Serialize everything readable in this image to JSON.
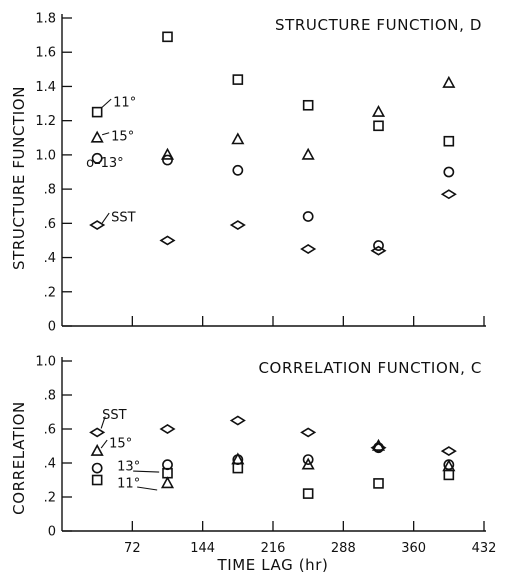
{
  "figure": {
    "xlabel": "TIME LAG (hr)"
  },
  "chart_data": [
    {
      "id": "structure",
      "type": "scatter",
      "title": "STRUCTURE FUNCTION, D",
      "ylabel": "STRUCTURE FUNCTION",
      "xlim": [
        0,
        432
      ],
      "ylim": [
        0,
        1.8
      ],
      "x_ticks": [
        72,
        144,
        216,
        288,
        360,
        432
      ],
      "x_tick_labels_shown": false,
      "y_ticks": [
        0,
        0.2,
        0.4,
        0.6,
        0.8,
        1.0,
        1.2,
        1.4,
        1.6,
        1.8
      ],
      "y_tick_labels": [
        "0",
        ".2",
        ".4",
        ".6",
        ".8",
        "1.0",
        "1.2",
        "1.4",
        "1.6",
        "1.8"
      ],
      "grid": false,
      "x": [
        36,
        108,
        180,
        252,
        324,
        396
      ],
      "series": [
        {
          "name": "11°",
          "marker": "square",
          "values": [
            1.25,
            1.69,
            1.44,
            1.29,
            1.17,
            1.08
          ]
        },
        {
          "name": "15°",
          "marker": "triangle",
          "values": [
            1.1,
            1.0,
            1.09,
            1.0,
            1.25,
            1.42
          ]
        },
        {
          "name": "13°",
          "marker": "circle",
          "values": [
            0.98,
            0.97,
            0.91,
            0.64,
            0.47,
            0.9
          ]
        },
        {
          "name": "SST",
          "marker": "diamond",
          "values": [
            0.59,
            0.5,
            0.59,
            0.45,
            0.44,
            0.77
          ]
        }
      ],
      "annotations": [
        {
          "series": "11°",
          "text": "11°"
        },
        {
          "series": "15°",
          "text": "15°"
        },
        {
          "series": "13°",
          "text": "o–13°"
        },
        {
          "series": "SST",
          "text": "SST"
        }
      ]
    },
    {
      "id": "correlation",
      "type": "scatter",
      "title": "CORRELATION FUNCTION, C",
      "ylabel": "CORRELATION",
      "xlim": [
        0,
        432
      ],
      "ylim": [
        0,
        1.0
      ],
      "x_ticks": [
        72,
        144,
        216,
        288,
        360,
        432
      ],
      "x_tick_labels": [
        "72",
        "144",
        "216",
        "288",
        "360",
        "432"
      ],
      "y_ticks": [
        0,
        0.2,
        0.4,
        0.6,
        0.8,
        1.0
      ],
      "y_tick_labels": [
        "0",
        ".2",
        ".4",
        ".6",
        ".8",
        "1.0"
      ],
      "grid": false,
      "x": [
        36,
        108,
        180,
        252,
        324,
        396
      ],
      "series": [
        {
          "name": "SST",
          "marker": "diamond",
          "values": [
            0.58,
            0.6,
            0.65,
            0.58,
            0.49,
            0.47
          ]
        },
        {
          "name": "15°",
          "marker": "triangle",
          "values": [
            0.47,
            0.28,
            0.42,
            0.39,
            0.5,
            0.38
          ]
        },
        {
          "name": "13°",
          "marker": "circle",
          "values": [
            0.37,
            0.39,
            0.42,
            0.42,
            0.49,
            0.39
          ]
        },
        {
          "name": "11°",
          "marker": "square",
          "values": [
            0.3,
            0.34,
            0.37,
            0.22,
            0.28,
            0.33
          ]
        }
      ],
      "annotations": [
        {
          "series": "SST",
          "text": "SST"
        },
        {
          "series": "15°",
          "text": "15°"
        },
        {
          "series": "13°",
          "text": "13°"
        },
        {
          "series": "11°",
          "text": "11°"
        }
      ]
    }
  ]
}
